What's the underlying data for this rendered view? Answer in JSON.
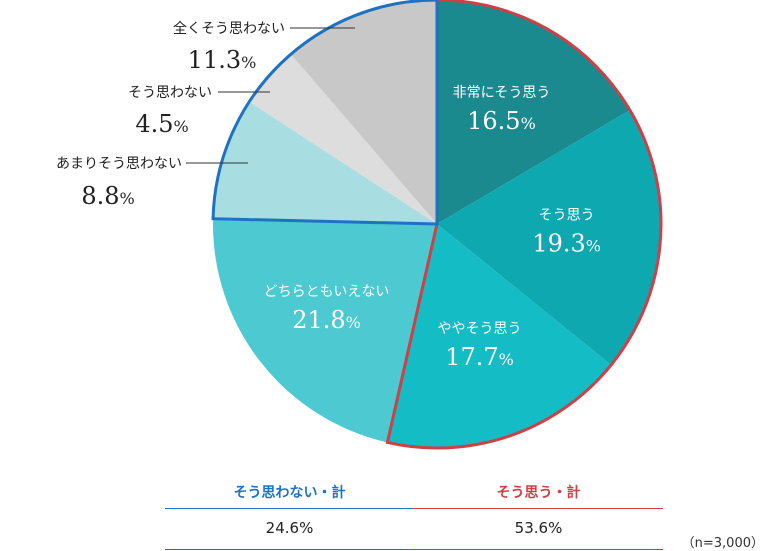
{
  "chart_data": {
    "type": "pie",
    "start": "12 o'clock",
    "direction": "clockwise",
    "slices": [
      {
        "label": "非常にそう思う",
        "value": 16.5,
        "display": "16.5",
        "color": "#1a8a8f",
        "label_color": "#ffffff"
      },
      {
        "label": "そう思う",
        "value": 19.3,
        "display": "19.3",
        "color": "#0ea8b0",
        "label_color": "#ffffff"
      },
      {
        "label": "ややそう思う",
        "value": 17.7,
        "display": "17.7",
        "color": "#14bcc6",
        "label_color": "#ffffff"
      },
      {
        "label": "どちらともいえない",
        "value": 21.8,
        "display": "21.8",
        "color": "#4dc9d1",
        "label_color": "#ffffff"
      },
      {
        "label": "あまりそう思わない",
        "value": 8.8,
        "display": "8.8",
        "color": "#a8dde1",
        "label_color": "#222222"
      },
      {
        "label": "そう思わない",
        "value": 4.5,
        "display": "4.5",
        "color": "#dddddd",
        "label_color": "#222222"
      },
      {
        "label": "全くそう思わない",
        "value": 11.3,
        "display": "11.3",
        "color": "#c8c8c8",
        "label_color": "#222222"
      }
    ],
    "percent_sign": "%",
    "groups": [
      {
        "name": "そう思う・計",
        "members": [
          0,
          1,
          2
        ],
        "outline_color": "#d13f45"
      },
      {
        "name": "そう思わない・計",
        "members": [
          4,
          5,
          6
        ],
        "outline_color": "#1f72c2"
      }
    ]
  },
  "summary": {
    "left": {
      "title": "そう思わない・計",
      "value": "24.6%",
      "color": "#1f72c2"
    },
    "right": {
      "title": "そう思う・計",
      "value": "53.6%",
      "color": "#d13f45"
    }
  },
  "sample_size": "（n=3,000）"
}
